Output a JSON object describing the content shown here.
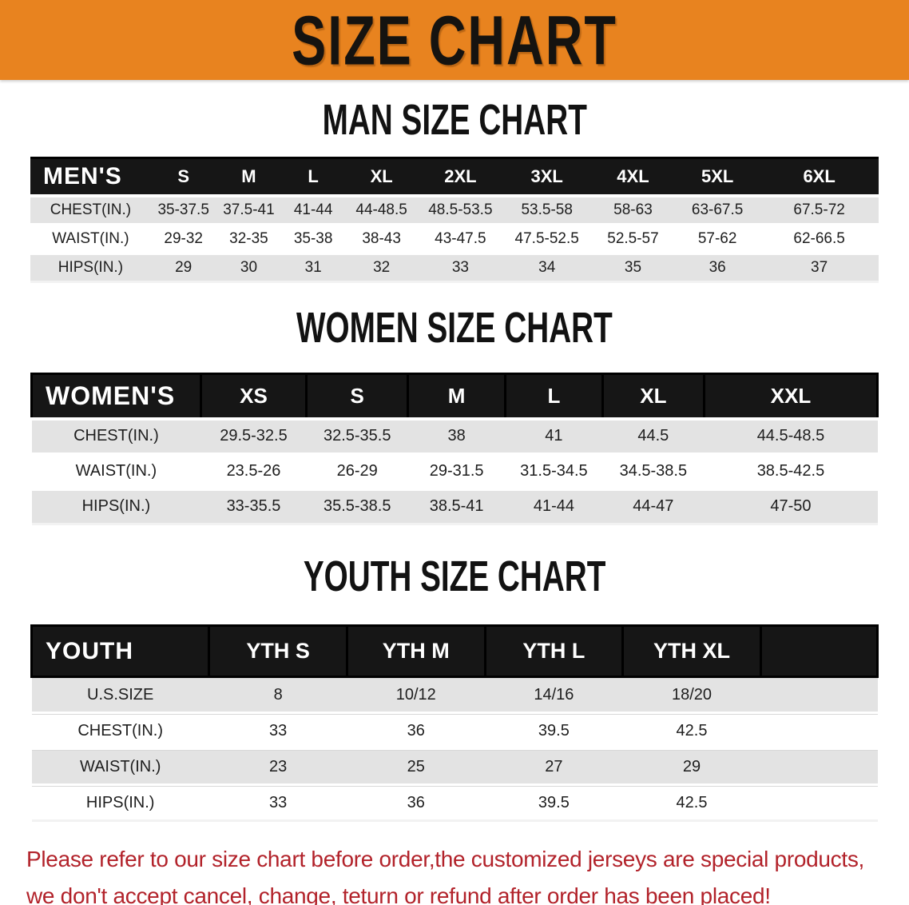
{
  "banner": {
    "title": "SIZE CHART",
    "bg_color": "#E8831F"
  },
  "mens_section": {
    "heading": "MAN SIZE CHART",
    "table": {
      "label": "MEN'S",
      "columns": [
        "S",
        "M",
        "L",
        "XL",
        "2XL",
        "3XL",
        "4XL",
        "5XL",
        "6XL"
      ],
      "rows": [
        {
          "label": "CHEST(IN.)",
          "values": [
            "35-37.5",
            "37.5-41",
            "41-44",
            "44-48.5",
            "48.5-53.5",
            "53.5-58",
            "58-63",
            "63-67.5",
            "67.5-72"
          ]
        },
        {
          "label": "WAIST(IN.)",
          "values": [
            "29-32",
            "32-35",
            "35-38",
            "38-43",
            "43-47.5",
            "47.5-52.5",
            "52.5-57",
            "57-62",
            "62-66.5"
          ]
        },
        {
          "label": "HIPS(IN.)",
          "values": [
            "29",
            "30",
            "31",
            "32",
            "33",
            "34",
            "35",
            "36",
            "37"
          ]
        }
      ]
    }
  },
  "womens_section": {
    "heading": "WOMEN SIZE CHART",
    "table": {
      "label": "WOMEN'S",
      "columns": [
        "XS",
        "S",
        "M",
        "L",
        "XL",
        "XXL"
      ],
      "rows": [
        {
          "label": "CHEST(IN.)",
          "values": [
            "29.5-32.5",
            "32.5-35.5",
            "38",
            "41",
            "44.5",
            "44.5-48.5"
          ]
        },
        {
          "label": "WAIST(IN.)",
          "values": [
            "23.5-26",
            "26-29",
            "29-31.5",
            "31.5-34.5",
            "34.5-38.5",
            "38.5-42.5"
          ]
        },
        {
          "label": "HIPS(IN.)",
          "values": [
            "33-35.5",
            "35.5-38.5",
            "38.5-41",
            "41-44",
            "44-47",
            "47-50"
          ]
        }
      ]
    }
  },
  "youth_section": {
    "heading": "YOUTH SIZE CHART",
    "table": {
      "label": "YOUTH",
      "columns": [
        "YTH S",
        "YTH M",
        "YTH L",
        "YTH XL"
      ],
      "rows": [
        {
          "label": "U.S.SIZE",
          "values": [
            "8",
            "10/12",
            "14/16",
            "18/20"
          ]
        },
        {
          "label": "CHEST(IN.)",
          "values": [
            "33",
            "36",
            "39.5",
            "42.5"
          ]
        },
        {
          "label": "WAIST(IN.)",
          "values": [
            "23",
            "25",
            "27",
            "29"
          ]
        },
        {
          "label": "HIPS(IN.)",
          "values": [
            "33",
            "36",
            "39.5",
            "42.5"
          ]
        }
      ]
    }
  },
  "disclaimer": {
    "color": "#B2222A",
    "lines": [
      "Please refer to our size chart before order,the customized jerseys are special products,",
      "we don't accept cancel, change, teturn or refund after order has been placed!"
    ]
  }
}
